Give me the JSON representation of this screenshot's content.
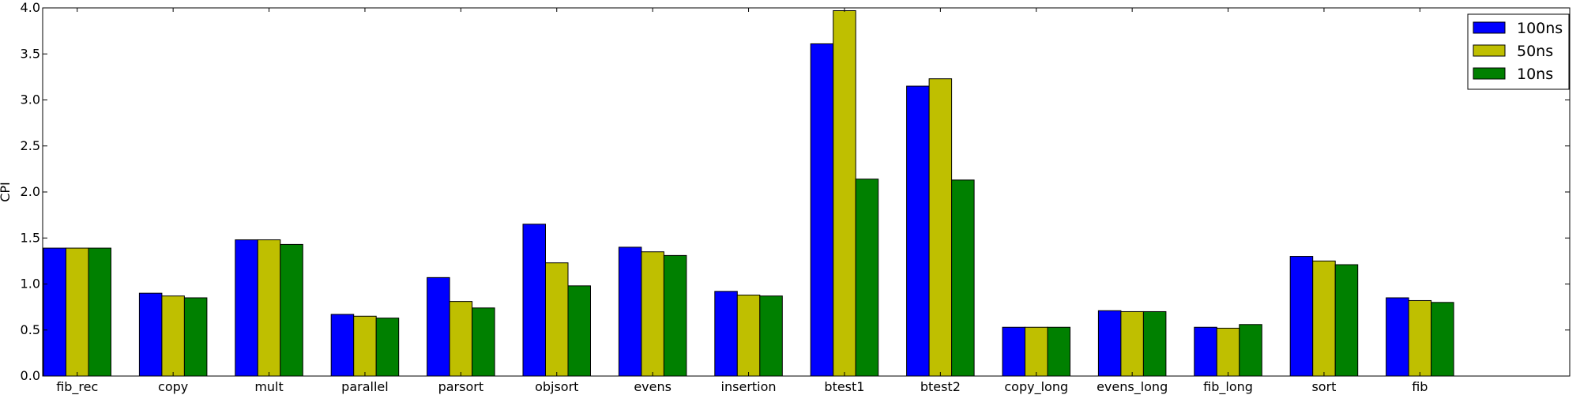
{
  "chart_data": {
    "type": "bar",
    "title": "",
    "xlabel": "",
    "ylabel": "CPI",
    "ylim": [
      0,
      4.0
    ],
    "yticks": [
      "0.0",
      "0.5",
      "1.0",
      "1.5",
      "2.0",
      "2.5",
      "3.0",
      "3.5",
      "4.0"
    ],
    "grid": false,
    "legend_position": "top-right",
    "categories": [
      "fib_rec",
      "copy",
      "mult",
      "parallel",
      "parsort",
      "objsort",
      "evens",
      "insertion",
      "btest1",
      "btest2",
      "copy_long",
      "evens_long",
      "fib_long",
      "sort",
      "fib"
    ],
    "series": [
      {
        "name": "100ns",
        "color": "#0000ff",
        "values": [
          1.39,
          0.9,
          1.48,
          0.67,
          1.07,
          1.65,
          1.4,
          0.92,
          3.61,
          3.15,
          0.53,
          0.71,
          0.53,
          1.3,
          0.85
        ]
      },
      {
        "name": "50ns",
        "color": "#bfbf00",
        "values": [
          1.39,
          0.87,
          1.48,
          0.65,
          0.81,
          1.23,
          1.35,
          0.88,
          3.97,
          3.23,
          0.53,
          0.7,
          0.52,
          1.25,
          0.82
        ]
      },
      {
        "name": "10ns",
        "color": "#008000",
        "values": [
          1.39,
          0.85,
          1.43,
          0.63,
          0.74,
          0.98,
          1.31,
          0.87,
          2.14,
          2.13,
          0.53,
          0.7,
          0.56,
          1.21,
          0.8
        ]
      }
    ]
  }
}
